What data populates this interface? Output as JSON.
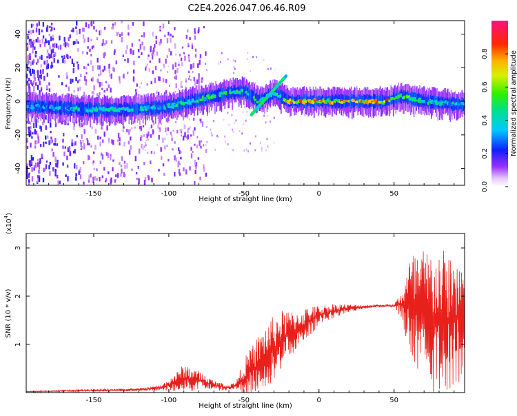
{
  "figure": {
    "title": "C2E4.2026.047.06.46.R09"
  },
  "colors": {
    "snr_line": "#e8201c",
    "axis": "#000000",
    "background": "#ffffff"
  },
  "chart_data": [
    {
      "type": "heatmap",
      "title": "C2E4.2026.047.06.46.R09",
      "xlabel": "Height of straight line (km)",
      "ylabel": "Frequency (Hz)",
      "xlim": [
        -195,
        97
      ],
      "ylim": [
        -50,
        48
      ],
      "xticks": [
        -150,
        -100,
        -50,
        0,
        50
      ],
      "xtick_labels": [
        "-150",
        "-100",
        "-50",
        "0",
        "50"
      ],
      "yticks": [
        -40,
        -20,
        0,
        20,
        40
      ],
      "ytick_labels": [
        "-40",
        "-20",
        "0",
        "20",
        "40"
      ],
      "colorbar": {
        "label": "Normalized spectral amplitude",
        "range": [
          0.0,
          1.0
        ],
        "ticks": [
          0.0,
          0.2,
          0.4,
          0.6,
          0.8
        ],
        "tick_labels": [
          "0.0",
          "0.2",
          "0.4",
          "0.6",
          "0.8"
        ],
        "colormap": "rainbow"
      },
      "ridge": [
        {
          "x": -190,
          "f": -3,
          "amp": 0.35
        },
        {
          "x": -170,
          "f": -4,
          "amp": 0.4
        },
        {
          "x": -150,
          "f": -5,
          "amp": 0.45
        },
        {
          "x": -130,
          "f": -5,
          "amp": 0.45
        },
        {
          "x": -110,
          "f": -4,
          "amp": 0.45
        },
        {
          "x": -100,
          "f": -3,
          "amp": 0.5
        },
        {
          "x": -90,
          "f": -1,
          "amp": 0.5
        },
        {
          "x": -80,
          "f": 1,
          "amp": 0.5
        },
        {
          "x": -70,
          "f": 3,
          "amp": 0.55
        },
        {
          "x": -60,
          "f": 5,
          "amp": 0.55
        },
        {
          "x": -50,
          "f": 6,
          "amp": 0.55
        },
        {
          "x": -40,
          "f": 0,
          "amp": 0.5
        },
        {
          "x": -30,
          "f": 5,
          "amp": 0.55
        },
        {
          "x": -20,
          "f": 0,
          "amp": 0.85
        },
        {
          "x": 0,
          "f": 0,
          "amp": 0.85
        },
        {
          "x": 20,
          "f": 0,
          "amp": 0.8
        },
        {
          "x": 45,
          "f": 0,
          "amp": 0.85
        },
        {
          "x": 55,
          "f": 3,
          "amp": 0.6
        },
        {
          "x": 70,
          "f": 0,
          "amp": 0.5
        },
        {
          "x": 95,
          "f": -2,
          "amp": 0.45
        }
      ]
    },
    {
      "type": "line",
      "xlabel": "Height of straight line (km)",
      "ylabel": "SNR (10 * v/v)",
      "y_multiplier_label": "(x10",
      "y_multiplier_exp": "4",
      "xlim": [
        -195,
        97
      ],
      "ylim": [
        0,
        3.3
      ],
      "xticks": [
        -150,
        -100,
        -50,
        0,
        50
      ],
      "xtick_labels": [
        "-150",
        "-100",
        "-50",
        "0",
        "50"
      ],
      "yticks": [
        1,
        2,
        3
      ],
      "ytick_labels": [
        "1",
        "2",
        "3"
      ],
      "series": [
        {
          "name": "SNR",
          "x": [
            -195,
            -160,
            -120,
            -105,
            -95,
            -90,
            -80,
            -70,
            -60,
            -55,
            -50,
            -45,
            -40,
            -35,
            -30,
            -25,
            -20,
            -15,
            -10,
            -5,
            0,
            10,
            20,
            30,
            40,
            50,
            55,
            60,
            65,
            70,
            80,
            90,
            97
          ],
          "center": [
            0.02,
            0.04,
            0.06,
            0.1,
            0.22,
            0.3,
            0.25,
            0.15,
            0.1,
            0.15,
            0.3,
            0.45,
            0.6,
            0.75,
            0.9,
            1.1,
            1.2,
            1.3,
            1.4,
            1.5,
            1.6,
            1.7,
            1.75,
            1.78,
            1.8,
            1.8,
            1.82,
            1.8,
            1.6,
            1.5,
            1.5,
            1.5,
            1.55
          ],
          "spread": [
            0.01,
            0.02,
            0.03,
            0.06,
            0.2,
            0.3,
            0.2,
            0.1,
            0.06,
            0.1,
            0.4,
            0.5,
            0.6,
            0.7,
            0.7,
            0.6,
            0.5,
            0.4,
            0.35,
            0.3,
            0.2,
            0.15,
            0.08,
            0.04,
            0.03,
            0.03,
            0.3,
            1.0,
            1.4,
            1.5,
            1.5,
            1.4,
            1.3
          ]
        }
      ]
    }
  ]
}
